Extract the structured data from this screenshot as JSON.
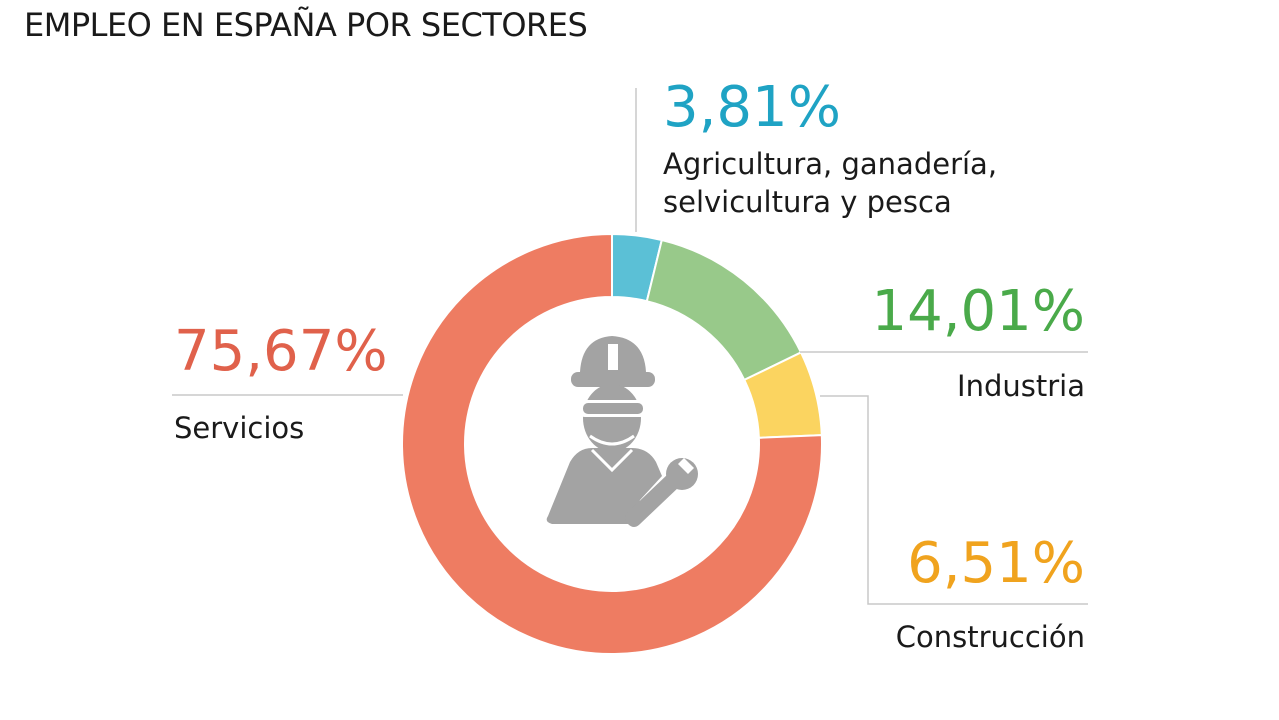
{
  "title": "EMPLEO EN ESPAÑA POR SECTORES",
  "icon": "construction-worker-icon",
  "chart_data": {
    "type": "pie",
    "title": "EMPLEO EN ESPAÑA POR SECTORES",
    "unit": "%",
    "categories": [
      "Agricultura, ganadería, selvicultura y pesca",
      "Industria",
      "Construcción",
      "Servicios"
    ],
    "values": [
      3.81,
      14.01,
      6.51,
      75.67
    ],
    "value_labels": [
      "3,81%",
      "14,01%",
      "6,51%",
      "75,67%"
    ],
    "colors": [
      "#5bc0d6",
      "#98c98a",
      "#fbd460",
      "#ee7c62"
    ],
    "label_colors": [
      "#1fa3c4",
      "#4aaa4a",
      "#f0a31e",
      "#e0614b"
    ],
    "legend": "none",
    "grid": false
  },
  "labels": {
    "agricultura_line1": "Agricultura, ganadería,",
    "agricultura_line2": "selvicultura y pesca"
  }
}
